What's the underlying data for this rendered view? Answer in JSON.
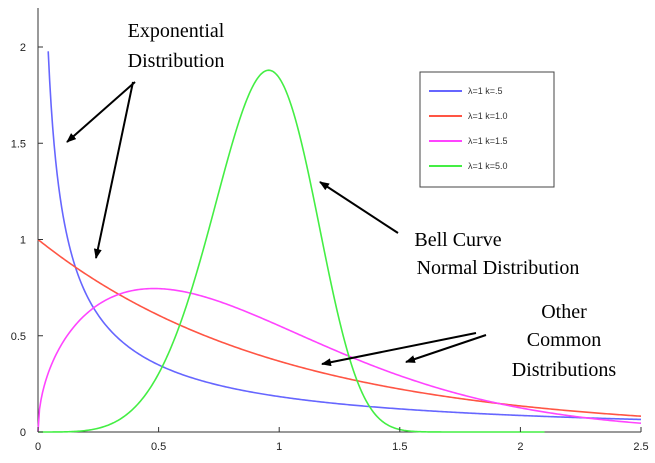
{
  "chart_data": {
    "type": "line",
    "xlim": [
      0,
      2.5
    ],
    "ylim": [
      0,
      2.1
    ],
    "x_ticks": [
      0,
      0.5,
      1,
      1.5,
      2,
      2.5
    ],
    "x_tick_labels": [
      "0",
      "0.5",
      "1",
      "1.5",
      "2",
      "2.5"
    ],
    "y_ticks": [
      0,
      0.5,
      1,
      1.5,
      2
    ],
    "y_tick_labels": [
      "0",
      "0.5",
      "1",
      "1.5",
      "2"
    ],
    "grid": false,
    "legend_position": "top-right",
    "series": [
      {
        "name": "λ=1 k=.5",
        "color": "#6666ff",
        "lambda": 1,
        "k": 0.5,
        "x_start": 0.03,
        "x_end": 2.5
      },
      {
        "name": "λ=1 k=1.0",
        "color": "#ff5544",
        "lambda": 1,
        "k": 1.0,
        "x_start": 0.0,
        "x_end": 2.5
      },
      {
        "name": "λ=1 k=1.5",
        "color": "#ff44ff",
        "lambda": 1,
        "k": 1.5,
        "x_start": 0.0,
        "x_end": 2.5
      },
      {
        "name": "λ=1 k=5.0",
        "color": "#44ee44",
        "lambda": 1,
        "k": 5.0,
        "x_start": 0.0,
        "x_end": 2.1
      }
    ]
  },
  "annotations": [
    {
      "id": "exponential",
      "lines": [
        "Exponential",
        "Distribution"
      ]
    },
    {
      "id": "bell",
      "lines": [
        "Bell Curve",
        "Normal Distribution"
      ]
    },
    {
      "id": "other",
      "lines": [
        "Other",
        "Common",
        "Distributions"
      ]
    }
  ]
}
